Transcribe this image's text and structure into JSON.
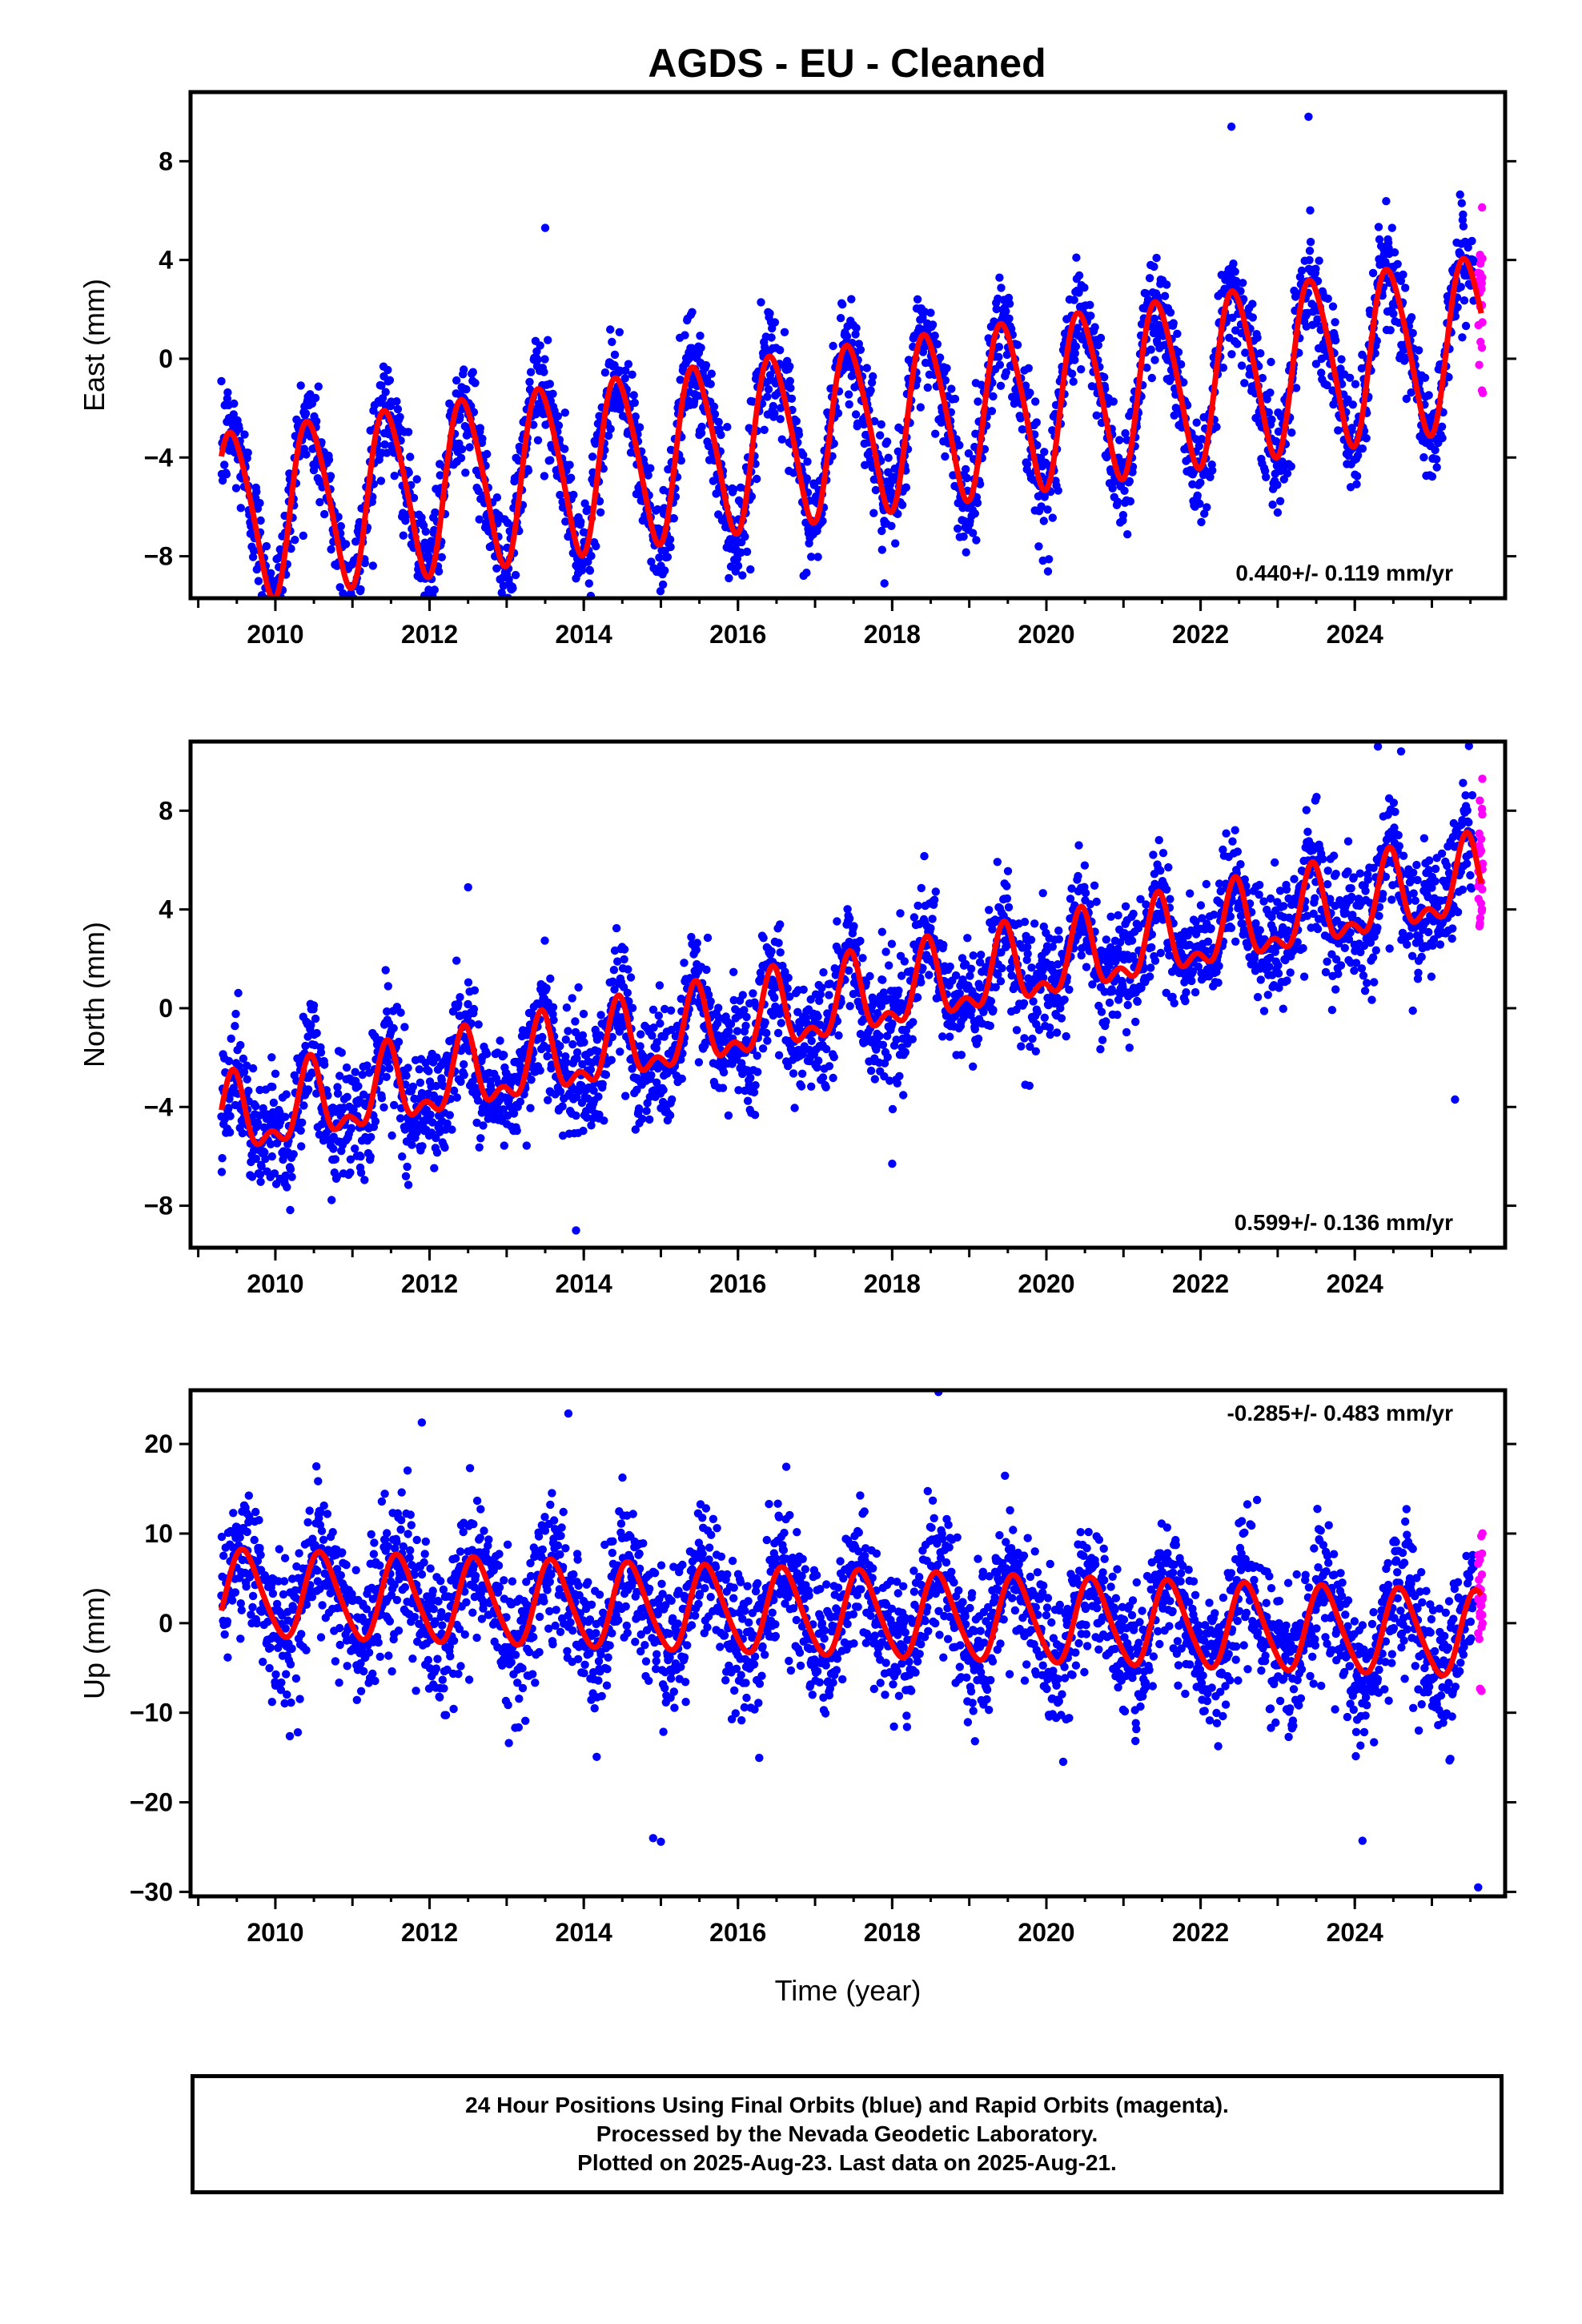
{
  "chart_data": {
    "type": "scatter",
    "title": "AGDS  - EU - Cleaned",
    "xlabel": "Time (year)",
    "x_ticks": [
      2010,
      2012,
      2014,
      2016,
      2018,
      2020,
      2022,
      2024
    ],
    "xlim": [
      2008.9,
      2025.95
    ],
    "data_start": 2009.3,
    "last_final": 2025.55,
    "last_rapid": 2025.64,
    "series_names": [
      "Final Orbits",
      "Rapid Orbits",
      "Model"
    ],
    "colors": {
      "final": "#0000ff",
      "rapid": "#ff00ff",
      "model": "#ff0000"
    },
    "panels": [
      {
        "name": "East",
        "ylabel": "East (mm)",
        "ylim": [
          -9.7,
          10.8
        ],
        "y_ticks": [
          -8,
          -4,
          0,
          4,
          8
        ],
        "rate_text": "0.440+/- 0.119 mm/yr",
        "rate_position": "bottom-right",
        "model": {
          "offset": -2.8,
          "rate": 0.44,
          "t0": 2017.5,
          "annual_amp": 3.4,
          "annual_phase": 2018.45,
          "semiannual_amp": 0.45,
          "semiannual_phase": 2018.3
        },
        "noise_sd": 1.1,
        "outliers": [
          [
            2011.9,
            -8.1
          ],
          [
            2013.9,
            -8.9
          ],
          [
            2017.9,
            -9.1
          ],
          [
            2019.9,
            -7.6
          ],
          [
            2022.4,
            9.4
          ],
          [
            2023.4,
            9.8
          ],
          [
            2013.5,
            5.3
          ]
        ]
      },
      {
        "name": "North",
        "ylabel": "North (mm)",
        "ylim": [
          -9.7,
          10.8
        ],
        "y_ticks": [
          -8,
          -4,
          0,
          4,
          8
        ],
        "rate_text": "0.599+/- 0.136 mm/yr",
        "rate_position": "bottom-right",
        "model": {
          "offset": 0.2,
          "rate": 0.6,
          "t0": 2017.5,
          "annual_amp": 1.4,
          "annual_phase": 2018.45,
          "semiannual_amp": 0.75,
          "semiannual_phase": 2018.45
        },
        "noise_sd": 1.2,
        "outliers": [
          [
            2013.9,
            -9.0
          ],
          [
            2018.0,
            -6.3
          ],
          [
            2024.3,
            10.6
          ],
          [
            2024.6,
            10.4
          ],
          [
            2012.5,
            4.9
          ],
          [
            2025.3,
            -3.7
          ]
        ]
      },
      {
        "name": "Up",
        "ylabel": "Up (mm)",
        "ylim": [
          -30.5,
          26.0
        ],
        "y_ticks": [
          -30,
          -20,
          -10,
          0,
          10,
          20
        ],
        "rate_text": "-0.285+/- 0.483 mm/yr",
        "rate_position": "top-right",
        "model": {
          "offset": 1.0,
          "rate": -0.285,
          "t0": 2017.5,
          "annual_amp": 4.7,
          "annual_phase": 2017.6,
          "semiannual_amp": 0.6,
          "semiannual_phase": 2017.5
        },
        "noise_sd": 3.8,
        "outliers": [
          [
            2011.9,
            22.4
          ],
          [
            2013.8,
            23.4
          ],
          [
            2018.6,
            25.8
          ],
          [
            2014.9,
            -24.0
          ],
          [
            2015.0,
            -24.4
          ],
          [
            2024.1,
            -24.3
          ],
          [
            2025.6,
            -29.5
          ]
        ]
      }
    ]
  },
  "footer": {
    "line1": "24 Hour Positions Using Final Orbits (blue) and Rapid Orbits (magenta).",
    "line2": "Processed by the Nevada Geodetic Laboratory.",
    "line3": "Plotted on 2025-Aug-23. Last data on 2025-Aug-21."
  }
}
